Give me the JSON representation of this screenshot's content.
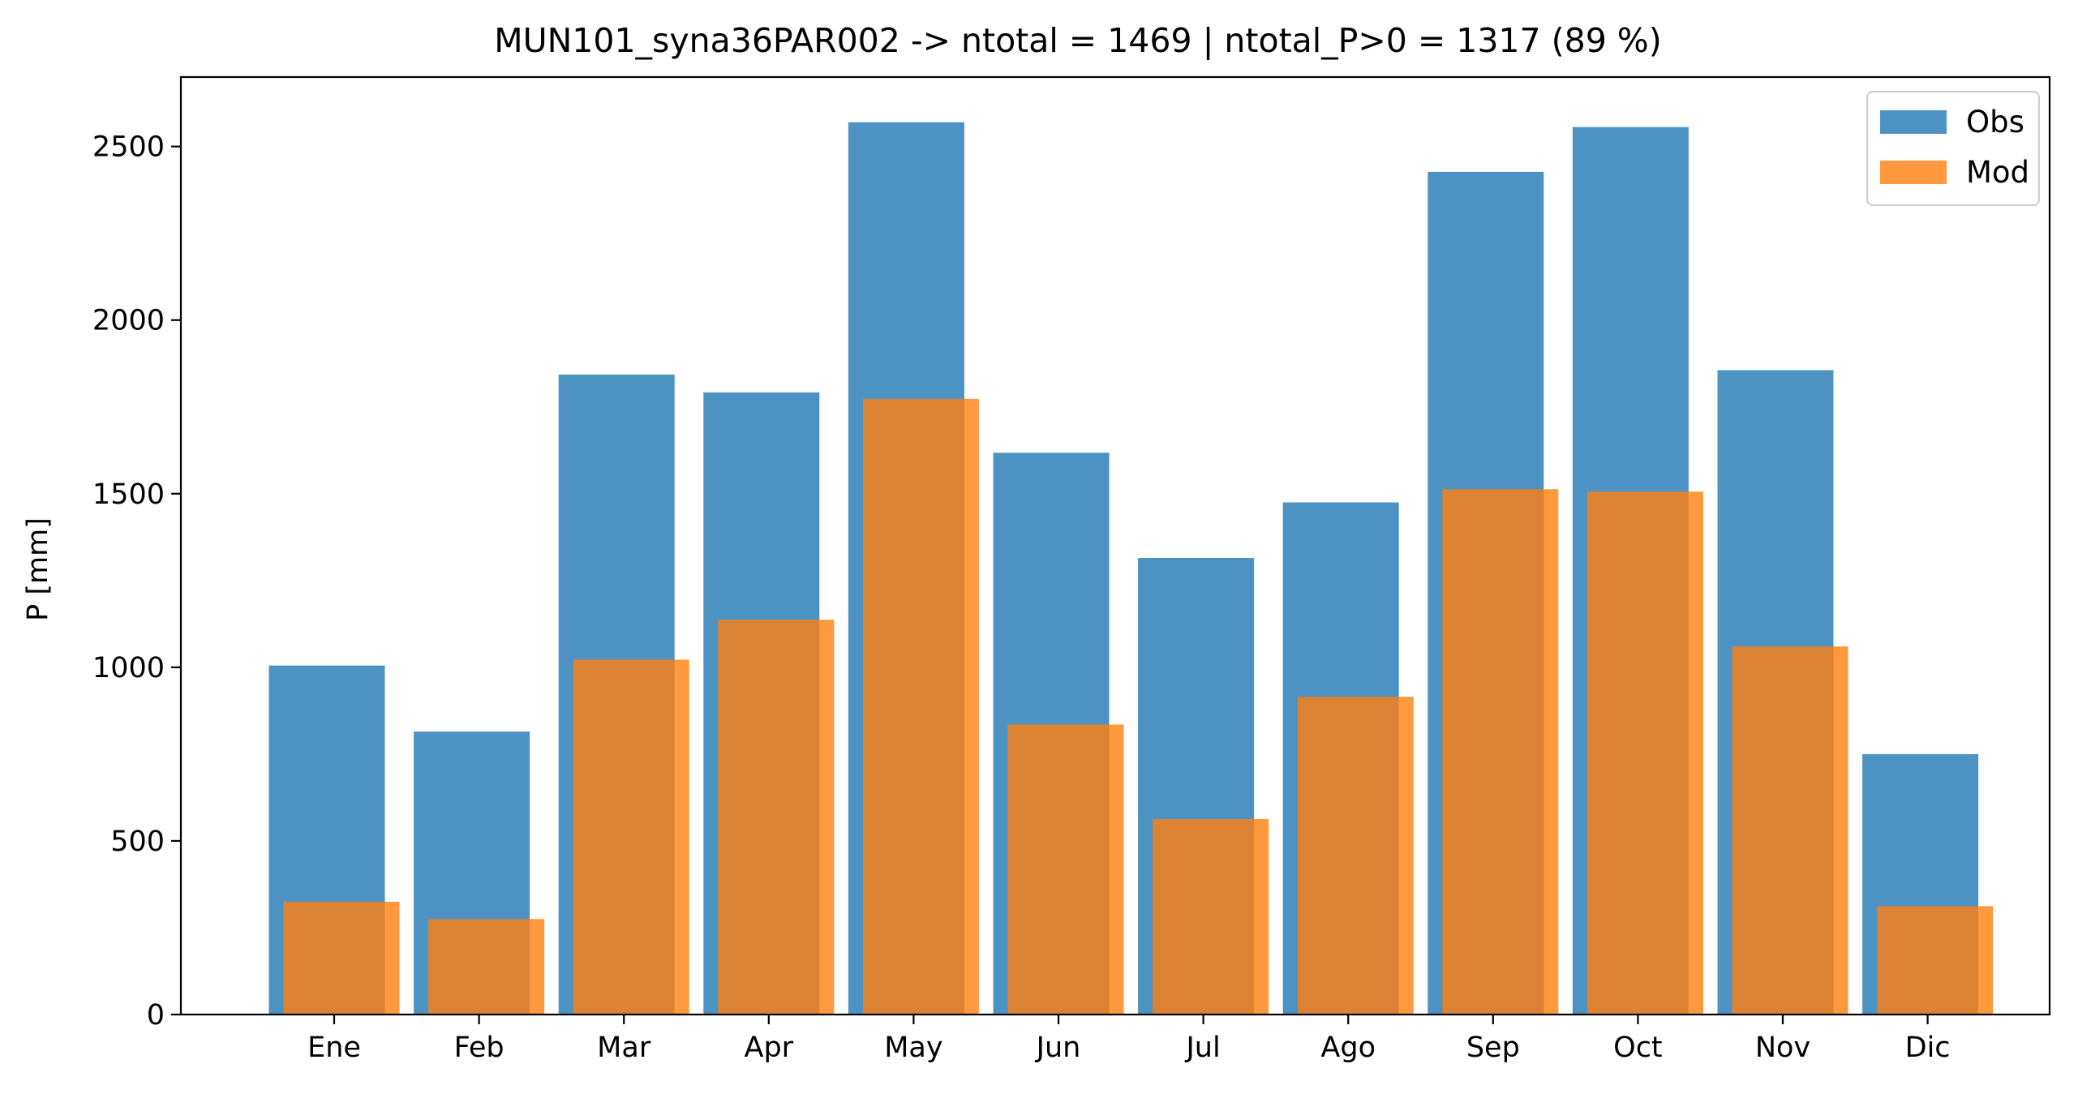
{
  "chart_data": {
    "type": "bar",
    "title": "MUN101_syna36PAR002 -> ntotal = 1469 | ntotal_P>0 = 1317 (89 %)",
    "xlabel": "",
    "ylabel": "P [mm]",
    "ylim": [
      0,
      2700
    ],
    "yticks": [
      0,
      500,
      1000,
      1500,
      2000,
      2500
    ],
    "categories": [
      "Ene",
      "Feb",
      "Mar",
      "Apr",
      "May",
      "Jun",
      "Jul",
      "Ago",
      "Sep",
      "Oct",
      "Nov",
      "Dic"
    ],
    "series": [
      {
        "name": "Obs",
        "color": "#1f77b4",
        "opacity": 0.8,
        "values": [
          1005,
          815,
          1843,
          1792,
          2570,
          1618,
          1315,
          1475,
          2427,
          2556,
          1856,
          750
        ]
      },
      {
        "name": "Mod",
        "color": "#ff7f0e",
        "opacity": 0.8,
        "values": [
          325,
          275,
          1022,
          1137,
          1773,
          835,
          563,
          915,
          1513,
          1506,
          1060,
          312
        ]
      }
    ],
    "grid": false,
    "legend_position": "top-right"
  }
}
